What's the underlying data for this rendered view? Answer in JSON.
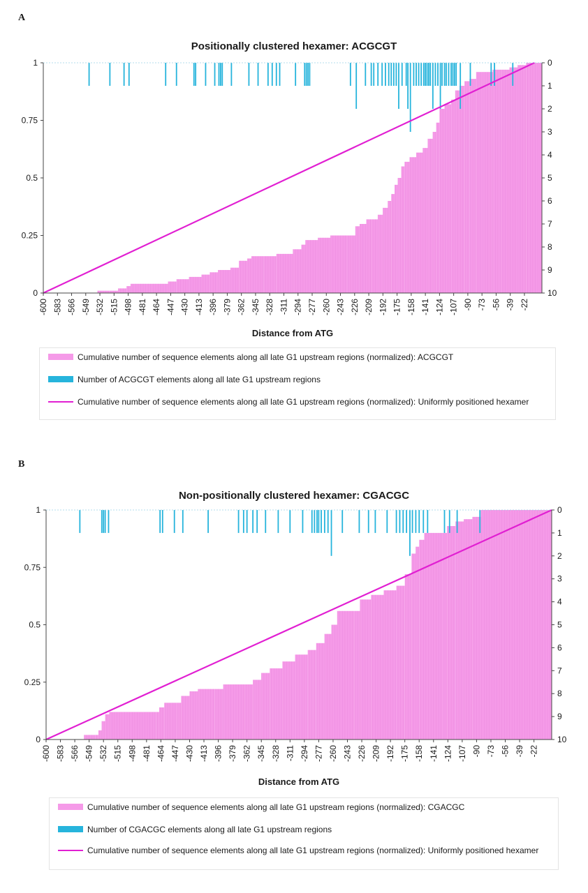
{
  "panels": [
    {
      "letter": "A"
    },
    {
      "letter": "B"
    }
  ],
  "colors": {
    "cumulative_fill": "#f59ae8",
    "count_bars": "#26b4dc",
    "uniform_line": "#e11fd2"
  },
  "chart_data": [
    {
      "type": "bar",
      "title": "Positionally clustered hexamer: ACGCGT",
      "xlabel": "Distance from ATG",
      "ylabel": "",
      "x_ticks": [
        "-600",
        "-583",
        "-566",
        "-549",
        "-532",
        "-515",
        "-498",
        "-481",
        "-464",
        "-447",
        "-430",
        "-413",
        "-396",
        "-379",
        "-362",
        "-345",
        "-328",
        "-311",
        "-294",
        "-277",
        "-260",
        "-243",
        "-226",
        "-209",
        "-192",
        "-175",
        "-158",
        "-141",
        "-124",
        "-107",
        "-90",
        "-73",
        "-56",
        "-39",
        "-22"
      ],
      "xlim": [
        -600,
        -1
      ],
      "y_left_ticks": [
        "0",
        "0.25",
        "0.5",
        "0.75",
        "1"
      ],
      "ylim_left": [
        0,
        1
      ],
      "y_right_ticks": [
        "0",
        "1",
        "2",
        "3",
        "4",
        "5",
        "6",
        "7",
        "8",
        "9",
        "10"
      ],
      "ylim_right": [
        10,
        0
      ],
      "series": [
        {
          "name": "Cumulative number of sequence elements along all late G1 upstream regions (normalized): ACGCGT",
          "type": "area",
          "axis": "left",
          "points": [
            [
              -600,
              0
            ],
            [
              -540,
              0
            ],
            [
              -535,
              0.01
            ],
            [
              -520,
              0.01
            ],
            [
              -510,
              0.02
            ],
            [
              -500,
              0.03
            ],
            [
              -495,
              0.04
            ],
            [
              -470,
              0.04
            ],
            [
              -450,
              0.05
            ],
            [
              -440,
              0.06
            ],
            [
              -425,
              0.07
            ],
            [
              -410,
              0.08
            ],
            [
              -400,
              0.09
            ],
            [
              -390,
              0.1
            ],
            [
              -375,
              0.11
            ],
            [
              -365,
              0.14
            ],
            [
              -355,
              0.15
            ],
            [
              -350,
              0.16
            ],
            [
              -335,
              0.16
            ],
            [
              -320,
              0.17
            ],
            [
              -300,
              0.19
            ],
            [
              -290,
              0.21
            ],
            [
              -285,
              0.23
            ],
            [
              -270,
              0.24
            ],
            [
              -255,
              0.25
            ],
            [
              -235,
              0.25
            ],
            [
              -225,
              0.29
            ],
            [
              -220,
              0.3
            ],
            [
              -212,
              0.32
            ],
            [
              -205,
              0.32
            ],
            [
              -198,
              0.34
            ],
            [
              -192,
              0.37
            ],
            [
              -186,
              0.4
            ],
            [
              -182,
              0.43
            ],
            [
              -178,
              0.47
            ],
            [
              -174,
              0.5
            ],
            [
              -170,
              0.55
            ],
            [
              -166,
              0.57
            ],
            [
              -160,
              0.59
            ],
            [
              -152,
              0.61
            ],
            [
              -144,
              0.63
            ],
            [
              -138,
              0.67
            ],
            [
              -132,
              0.7
            ],
            [
              -128,
              0.74
            ],
            [
              -124,
              0.8
            ],
            [
              -118,
              0.82
            ],
            [
              -110,
              0.84
            ],
            [
              -105,
              0.88
            ],
            [
              -100,
              0.9
            ],
            [
              -94,
              0.92
            ],
            [
              -88,
              0.93
            ],
            [
              -80,
              0.96
            ],
            [
              -72,
              0.96
            ],
            [
              -60,
              0.97
            ],
            [
              -50,
              0.97
            ],
            [
              -40,
              0.98
            ],
            [
              -30,
              0.99
            ],
            [
              -20,
              1.0
            ],
            [
              -1,
              1.0
            ]
          ]
        },
        {
          "name": "Number of ACGCGT elements along all late G1 upstream regions",
          "type": "bar",
          "axis": "right",
          "x": [
            -545,
            -520,
            -503,
            -497,
            -453,
            -440,
            -419,
            -417,
            -405,
            -394,
            -389,
            -387,
            -385,
            -374,
            -353,
            -342,
            -330,
            -325,
            -320,
            -316,
            -297,
            -286,
            -284,
            -282,
            -280,
            -231,
            -224,
            -213,
            -206,
            -203,
            -198,
            -193,
            -189,
            -185,
            -182,
            -179,
            -176,
            -173,
            -169,
            -164,
            -162,
            -159,
            -155,
            -152,
            -149,
            -146,
            -143,
            -141,
            -139,
            -137,
            -135,
            -132,
            -129,
            -126,
            -123,
            -121,
            -118,
            -116,
            -113,
            -110,
            -108,
            -106,
            -104,
            -99,
            -87,
            -62,
            -58,
            -36
          ],
          "values": [
            1,
            1,
            1,
            1,
            1,
            1,
            1,
            1,
            1,
            1,
            1,
            1,
            1,
            1,
            1,
            1,
            1,
            1,
            1,
            1,
            1,
            1,
            1,
            1,
            1,
            1,
            2,
            1,
            1,
            1,
            1,
            1,
            1,
            1,
            1,
            1,
            1,
            2,
            1,
            1,
            2,
            3,
            1,
            1,
            1,
            1,
            1,
            1,
            1,
            1,
            1,
            2,
            1,
            1,
            2,
            1,
            1,
            1,
            1,
            1,
            1,
            1,
            1,
            2,
            1,
            1,
            1,
            1
          ]
        },
        {
          "name": "Cumulative number of sequence elements along all late G1 upstream regions (normalized): Uniformly positioned hexamer",
          "type": "line",
          "axis": "left",
          "points": [
            [
              -600,
              0
            ],
            [
              -10,
              1
            ]
          ]
        }
      ],
      "legend_position": "bottom"
    },
    {
      "type": "bar",
      "title": "Non-positionally clustered hexamer: CGACGC",
      "xlabel": "Distance from ATG",
      "ylabel": "",
      "x_ticks": [
        "-600",
        "-583",
        "-566",
        "-549",
        "-532",
        "-515",
        "-498",
        "-481",
        "-464",
        "-447",
        "-430",
        "-413",
        "-396",
        "-379",
        "-362",
        "-345",
        "-328",
        "-311",
        "-294",
        "-277",
        "-260",
        "-243",
        "-226",
        "-209",
        "-192",
        "-175",
        "-158",
        "-141",
        "-124",
        "-107",
        "-90",
        "-73",
        "-56",
        "-39",
        "-22"
      ],
      "xlim": [
        -600,
        -1
      ],
      "y_left_ticks": [
        "0",
        "0.25",
        "0.5",
        "0.75",
        "1"
      ],
      "ylim_left": [
        0,
        1
      ],
      "y_right_ticks": [
        "0",
        "1",
        "2",
        "3",
        "4",
        "5",
        "6",
        "7",
        "8",
        "9",
        "10"
      ],
      "ylim_right": [
        10,
        0
      ],
      "series": [
        {
          "name": "Cumulative number of sequence elements along all late G1 upstream regions (normalized): CGACGC",
          "type": "area",
          "axis": "left",
          "points": [
            [
              -600,
              0
            ],
            [
              -556,
              0
            ],
            [
              -555,
              0.02
            ],
            [
              -542,
              0.02
            ],
            [
              -538,
              0.04
            ],
            [
              -534,
              0.08
            ],
            [
              -530,
              0.11
            ],
            [
              -525,
              0.12
            ],
            [
              -470,
              0.12
            ],
            [
              -466,
              0.14
            ],
            [
              -460,
              0.16
            ],
            [
              -445,
              0.16
            ],
            [
              -440,
              0.19
            ],
            [
              -430,
              0.21
            ],
            [
              -420,
              0.22
            ],
            [
              -400,
              0.22
            ],
            [
              -390,
              0.24
            ],
            [
              -365,
              0.24
            ],
            [
              -355,
              0.26
            ],
            [
              -345,
              0.29
            ],
            [
              -335,
              0.31
            ],
            [
              -320,
              0.34
            ],
            [
              -305,
              0.37
            ],
            [
              -290,
              0.39
            ],
            [
              -280,
              0.42
            ],
            [
              -270,
              0.46
            ],
            [
              -262,
              0.5
            ],
            [
              -255,
              0.56
            ],
            [
              -235,
              0.56
            ],
            [
              -228,
              0.61
            ],
            [
              -215,
              0.63
            ],
            [
              -200,
              0.65
            ],
            [
              -185,
              0.67
            ],
            [
              -175,
              0.72
            ],
            [
              -167,
              0.81
            ],
            [
              -162,
              0.84
            ],
            [
              -158,
              0.87
            ],
            [
              -152,
              0.9
            ],
            [
              -130,
              0.9
            ],
            [
              -125,
              0.93
            ],
            [
              -115,
              0.95
            ],
            [
              -105,
              0.96
            ],
            [
              -95,
              0.97
            ],
            [
              -85,
              1.0
            ],
            [
              -1,
              1.0
            ]
          ]
        },
        {
          "name": "Number of CGACGC elements along all late G1 upstream regions",
          "type": "bar",
          "axis": "right",
          "x": [
            -560,
            -534,
            -532,
            -530,
            -526,
            -465,
            -462,
            -448,
            -438,
            -408,
            -372,
            -366,
            -362,
            -355,
            -350,
            -340,
            -325,
            -311,
            -296,
            -285,
            -282,
            -279,
            -277,
            -274,
            -270,
            -266,
            -262,
            -249,
            -229,
            -218,
            -210,
            -196,
            -185,
            -181,
            -177,
            -173,
            -169,
            -166,
            -162,
            -158,
            -153,
            -148,
            -128,
            -122,
            -113,
            -86
          ],
          "values": [
            1,
            1,
            1,
            1,
            1,
            1,
            1,
            1,
            1,
            1,
            1,
            1,
            1,
            1,
            1,
            1,
            1,
            1,
            1,
            1,
            1,
            1,
            1,
            1,
            1,
            1,
            2,
            1,
            1,
            1,
            1,
            1,
            1,
            1,
            1,
            1,
            2,
            1,
            1,
            1,
            1,
            1,
            1,
            1,
            1,
            1
          ]
        },
        {
          "name": "Cumulative number of sequence elements along all late G1 upstream regions (normalized): Uniformly positioned hexamer",
          "type": "line",
          "axis": "left",
          "points": [
            [
              -600,
              0
            ],
            [
              -1,
              1
            ]
          ]
        }
      ],
      "legend_position": "bottom"
    }
  ]
}
